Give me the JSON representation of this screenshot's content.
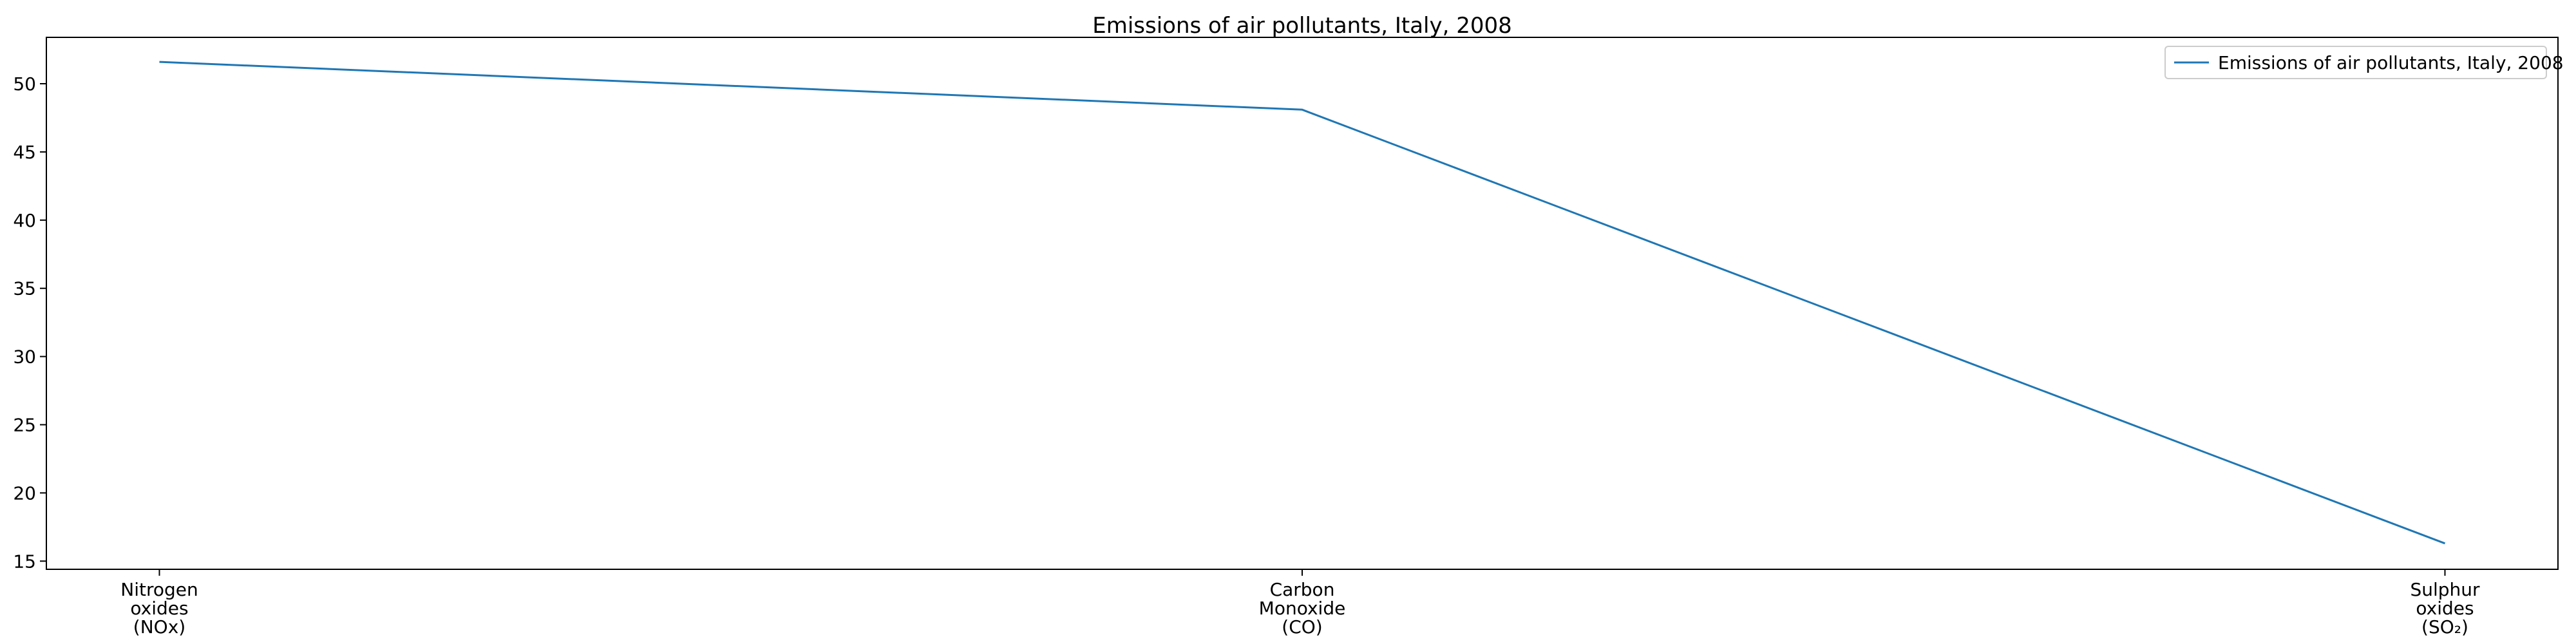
{
  "chart_data": {
    "type": "line",
    "title": "Emissions of air pollutants, Italy, 2008",
    "xlabel": "",
    "ylabel": "",
    "categories": [
      [
        "Nitrogen",
        "oxides",
        "(NOx)"
      ],
      [
        "Carbon",
        "Monoxide",
        "(CO)"
      ],
      [
        "Sulphur",
        "oxides",
        "(SO₂)"
      ]
    ],
    "series": [
      {
        "name": "Emissions of air pollutants, Italy, 2008",
        "values": [
          51.6,
          48.1,
          16.3
        ],
        "color": "#1f77b4"
      }
    ],
    "yticks": [
      15,
      20,
      25,
      30,
      35,
      40,
      45,
      50
    ],
    "ylim": [
      14.4,
      53.4
    ],
    "grid": false,
    "legend_position": "top-right"
  }
}
